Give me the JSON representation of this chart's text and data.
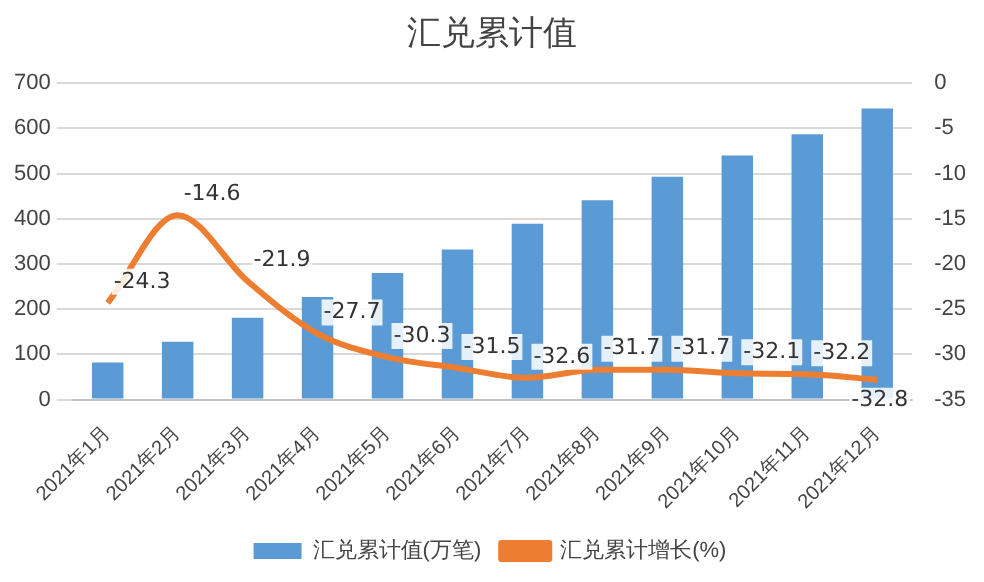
{
  "chart_data": {
    "type": "bar",
    "title": "汇兑累计值",
    "categories": [
      "2021年1月",
      "2021年2月",
      "2021年3月",
      "2021年4月",
      "2021年5月",
      "2021年6月",
      "2021年7月",
      "2021年8月",
      "2021年9月",
      "2021年10月",
      "2021年11月",
      "2021年12月"
    ],
    "series": [
      {
        "name": "汇兑累计值(万笔)",
        "color": "#5b9bd5",
        "values": [
          82,
          128,
          181,
          227,
          280,
          332,
          389,
          441,
          493,
          540,
          587,
          644
        ]
      },
      {
        "name": "汇兑累计增长(%)",
        "type": "line",
        "axis": "y2",
        "color": "#ed7d31",
        "values": [
          -24.3,
          -14.6,
          -21.9,
          -27.7,
          -30.3,
          -31.5,
          -32.6,
          -31.7,
          -31.7,
          -32.1,
          -32.2,
          -32.8
        ],
        "value_labels": [
          "-24.3",
          "-14.6",
          "-21.9",
          "-27.7",
          "-30.3",
          "-31.5",
          "-32.6",
          "-31.7",
          "-31.7",
          "-32.1",
          "-32.2",
          "-32.8"
        ]
      }
    ],
    "ylim": [
      0,
      700
    ],
    "yticks": [
      0,
      100,
      200,
      300,
      400,
      500,
      600,
      700
    ],
    "y2lim": [
      -35,
      0
    ],
    "y2ticks": [
      -35,
      -30,
      -25,
      -20,
      -15,
      -10,
      -5,
      0
    ],
    "grid": "y",
    "legend": "bottom",
    "marker": "none",
    "line_style": "solid"
  }
}
